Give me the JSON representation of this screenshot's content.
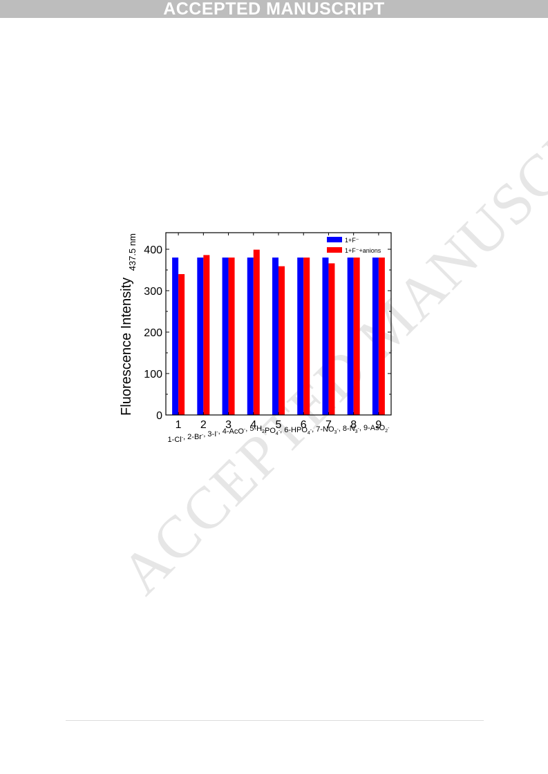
{
  "header": {
    "banner_text": "ACCEPTED MANUSCRIPT"
  },
  "watermark_text": "ACCEPTED MANUSCRIPT",
  "chart_data": {
    "type": "bar",
    "categories": [
      "1",
      "2",
      "3",
      "4",
      "5",
      "6",
      "7",
      "8",
      "9"
    ],
    "series": [
      {
        "name": "1+F⁻",
        "color": "#0000ff",
        "values": [
          380,
          380,
          380,
          380,
          380,
          380,
          380,
          380,
          380
        ]
      },
      {
        "name": "1+F⁻+anions",
        "color": "#ff0000",
        "values": [
          340,
          386,
          380,
          399,
          359,
          380,
          366,
          380,
          380
        ]
      }
    ],
    "ylabel_main": "Fluorescence Intensity",
    "ylabel_sub": "437.5 nm",
    "xlabel_parts": [
      {
        "main": "1-Cl",
        "sub": "",
        "sup": "-"
      },
      {
        "main": ", 2-Br",
        "sub": "",
        "sup": "-"
      },
      {
        "main": ", 3-I",
        "sub": "",
        "sup": "-"
      },
      {
        "main": ", 4-AcO",
        "sub": "",
        "sup": "-"
      },
      {
        "main": ", 5-H",
        "sub": "2",
        "sup": ""
      },
      {
        "main": "PO",
        "sub": "4",
        "sup": "-"
      },
      {
        "main": ", 6-HPO",
        "sub": "4",
        "sup": "-"
      },
      {
        "main": ", 7-NO",
        "sub": "3",
        "sup": "-"
      },
      {
        "main": ", 8-N",
        "sub": "3",
        "sup": "-"
      },
      {
        "main": ", 9-AsO",
        "sub": "2",
        "sup": "-"
      }
    ],
    "y_ticks": [
      "0",
      "100",
      "200",
      "300",
      "400"
    ],
    "ylim": [
      0,
      440
    ],
    "legend_position": "top-right",
    "grid": false
  }
}
